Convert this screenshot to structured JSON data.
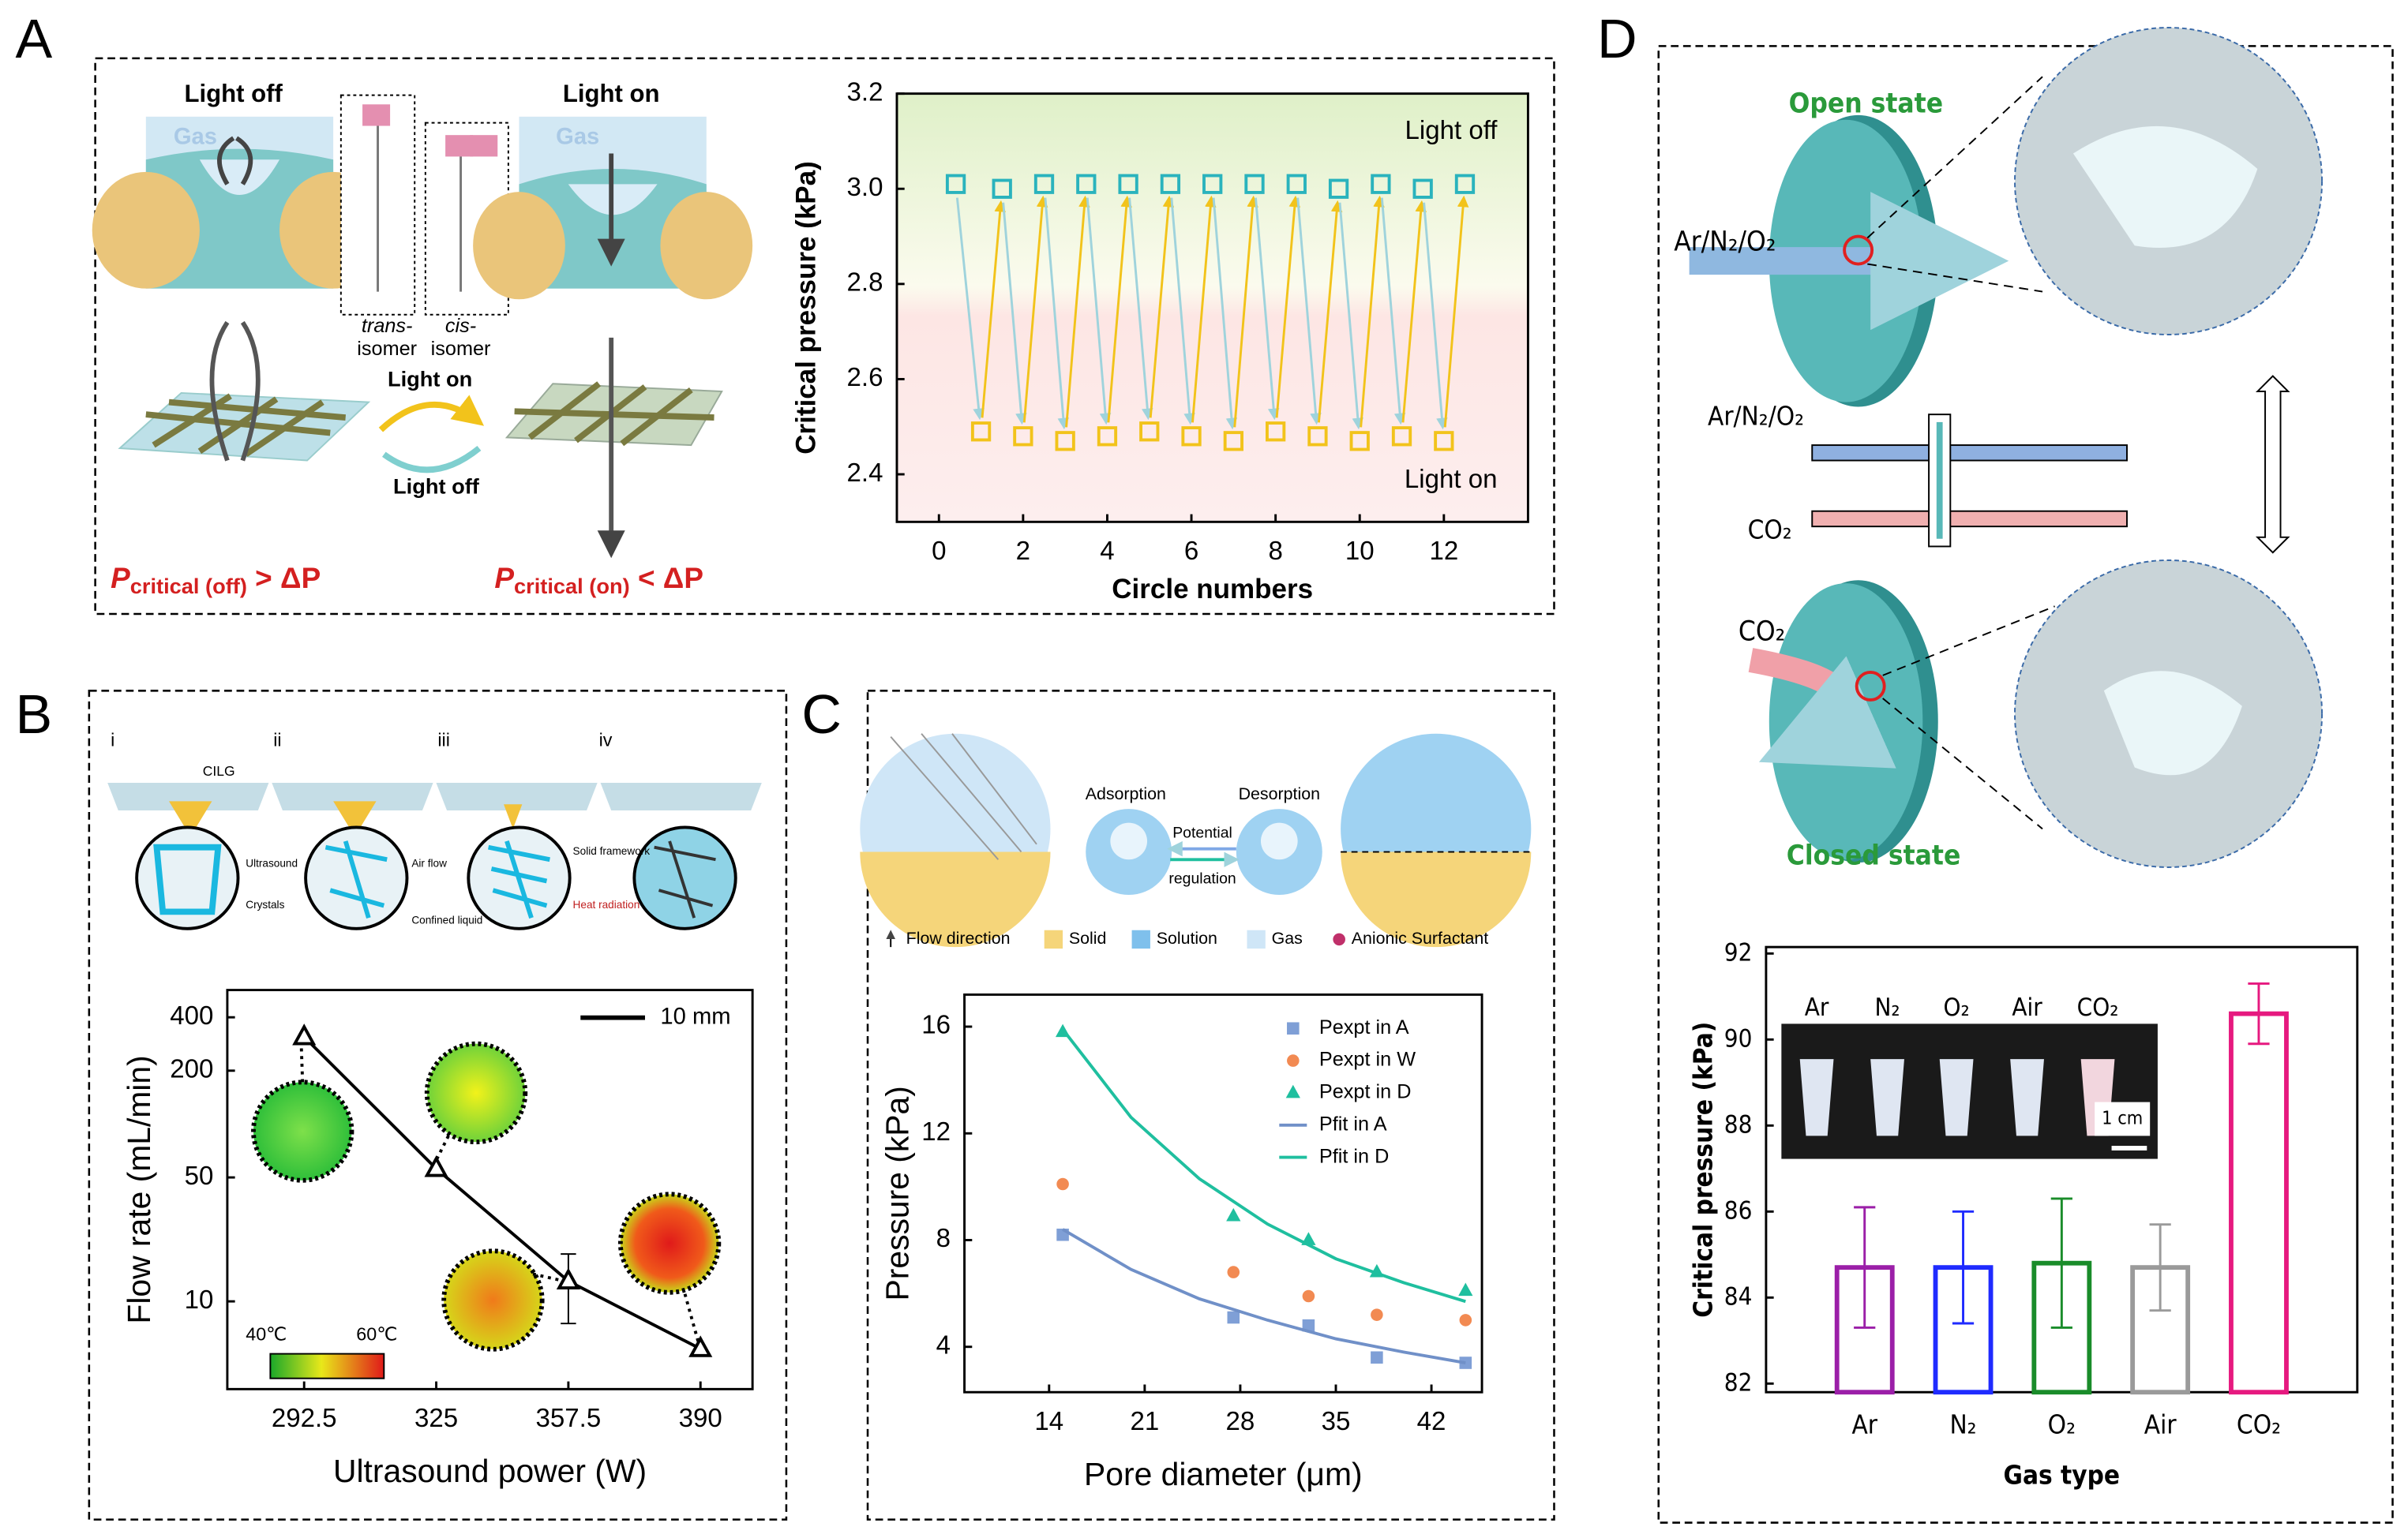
{
  "chart_data": [
    {
      "panel": "A",
      "type": "scatter",
      "xlabel": "Circle numbers",
      "ylabel": "Critical pressure (kPa)",
      "xlim": [
        -1,
        14
      ],
      "xticks": [
        0,
        2,
        4,
        6,
        8,
        10,
        12
      ],
      "ylim": [
        2.3,
        3.2
      ],
      "yticks": [
        2.4,
        2.6,
        2.8,
        {
          "value": 3,
          "label": "3.0"
        },
        3.2
      ],
      "legend": "inline",
      "arrows": true,
      "series": [
        {
          "name": "Light off",
          "color": "#2ab3bd",
          "marker": "square",
          "hollow": true,
          "x": [
            0.4,
            1.5,
            2.5,
            3.5,
            4.5,
            5.5,
            6.5,
            7.5,
            8.5,
            9.5,
            10.5,
            11.5,
            12.5
          ],
          "values": [
            3.01,
            3.0,
            3.01,
            3.01,
            3.01,
            3.01,
            3.01,
            3.01,
            3.01,
            3.0,
            3.01,
            3.0,
            3.01
          ]
        },
        {
          "name": "Light on",
          "color": "#f2c31b",
          "marker": "square",
          "hollow": true,
          "x": [
            1,
            2,
            3,
            4,
            5,
            6,
            7,
            8,
            9,
            10,
            11,
            12
          ],
          "values": [
            2.49,
            2.48,
            2.47,
            2.48,
            2.49,
            2.48,
            2.47,
            2.49,
            2.48,
            2.47,
            2.48,
            2.47
          ]
        }
      ],
      "illustration": {
        "light_off": "Light off",
        "light_on": "Light on",
        "gas_left": "Gas",
        "gas_right": "Gas",
        "trans": [
          "trans-",
          "isomer"
        ],
        "cis": [
          "cis-",
          "isomer"
        ],
        "switch_on": "Light on",
        "switch_off": "Light off",
        "p_off": {
          "main": "P",
          "sub": "critical (off)",
          "rest": " > ΔP"
        },
        "p_on": {
          "main": "P",
          "sub": "critical (on)",
          "rest": " < ΔP"
        }
      }
    },
    {
      "panel": "B",
      "type": "line",
      "xlabel": "Ultrasound power (W)",
      "ylabel": "Flow rate (mL/min)",
      "yscale": "log",
      "xlim": [
        273.6,
        402.8
      ],
      "xticks": [
        292.5,
        325,
        357.5,
        390
      ],
      "ylim": [
        3.2,
        570
      ],
      "yticks": [
        10,
        50,
        200,
        400
      ],
      "color": "#000000",
      "marker": "triangle",
      "x": [
        292.5,
        325,
        357.5,
        390
      ],
      "values": [
        310,
        56,
        13,
        5.4
      ],
      "errors": [
        null,
        null,
        5.5,
        null
      ],
      "scale_bar": "10 mm",
      "colorbar": [
        "40℃",
        "60℃"
      ],
      "illustration": {
        "steps": [
          "i",
          "ii",
          "iii",
          "iv"
        ],
        "cilg": "CILG",
        "legend": [
          "Ultrasound",
          "Crystals",
          "Air flow",
          "Confined liquid",
          "Solid framework",
          "Heat radiation"
        ]
      }
    },
    {
      "panel": "C",
      "type": "scatter",
      "xlabel": "Pore diameter (μm)",
      "ylabel": "Pressure (kPa)",
      "xlim": [
        7.8,
        45.7
      ],
      "xticks": [
        14,
        21,
        28,
        35,
        42
      ],
      "ylim": [
        2.3,
        17.2
      ],
      "yticks": [
        4,
        8,
        12,
        16
      ],
      "legend": "upper right",
      "series": [
        {
          "name": "Pexpt in A",
          "color": "#7f9fd6",
          "marker": "square",
          "mode": "markers",
          "x": [
            15,
            27.5,
            33,
            38,
            44.5
          ],
          "values": [
            8.2,
            5.1,
            4.8,
            3.6,
            3.4
          ]
        },
        {
          "name": "Pexpt in W",
          "color": "#f28a52",
          "marker": "circle",
          "mode": "markers",
          "x": [
            15,
            27.5,
            33,
            38,
            44.5
          ],
          "values": [
            10.1,
            6.8,
            5.9,
            5.2,
            5.0
          ]
        },
        {
          "name": "Pexpt in D",
          "color": "#1fbf9f",
          "marker": "triangle",
          "mode": "markers",
          "x": [
            15,
            27.5,
            33,
            38,
            44.5
          ],
          "values": [
            15.8,
            8.9,
            8.0,
            6.8,
            6.1
          ]
        },
        {
          "name": "Pfit in A",
          "color": "#7090c8",
          "mode": "line",
          "x": [
            15,
            20,
            25,
            30,
            35,
            40,
            44.5
          ],
          "values": [
            8.4,
            6.9,
            5.8,
            5.0,
            4.3,
            3.8,
            3.4
          ]
        },
        {
          "name": "Pfit in D",
          "color": "#1fbf9f",
          "mode": "line",
          "x": [
            15,
            20,
            25,
            30,
            35,
            40,
            44.5
          ],
          "values": [
            15.9,
            12.6,
            10.3,
            8.6,
            7.3,
            6.4,
            5.7
          ]
        }
      ],
      "illustration": {
        "adsorption": "Adsorption",
        "desorption": "Desorption",
        "potential": "Potential",
        "regulation": "regulation",
        "legend": [
          "Flow direction",
          "Solid",
          "Solution",
          "Gas",
          "Anionic Surfactant"
        ]
      }
    },
    {
      "panel": "D",
      "type": "bar",
      "xlabel": "Gas type",
      "ylabel": "Critical pressure (kPa)",
      "categories": [
        "Ar",
        "N₂",
        "O₂",
        "Air",
        "CO₂"
      ],
      "values": [
        84.7,
        84.7,
        84.8,
        84.7,
        90.6
      ],
      "errors": [
        1.4,
        1.3,
        1.5,
        1.0,
        0.7
      ],
      "colors": [
        "#9b1fa8",
        "#1f2bff",
        "#1a8c2a",
        "#9a9a9a",
        "#e6197f"
      ],
      "ylim": [
        81.8,
        92.15
      ],
      "yticks": [
        82,
        84,
        86,
        88,
        90,
        92
      ],
      "photo_labels": [
        "Ar",
        "N₂",
        "O₂",
        "Air",
        "CO₂"
      ],
      "photo_scale": "1 cm",
      "illustration": {
        "open": "Open state",
        "closed": "Closed state",
        "gas_in": "Ar/N₂/O₂",
        "gas_mid": "Ar/N₂/O₂",
        "co2_mid": "CO₂",
        "co2_in": "CO₂"
      }
    }
  ]
}
